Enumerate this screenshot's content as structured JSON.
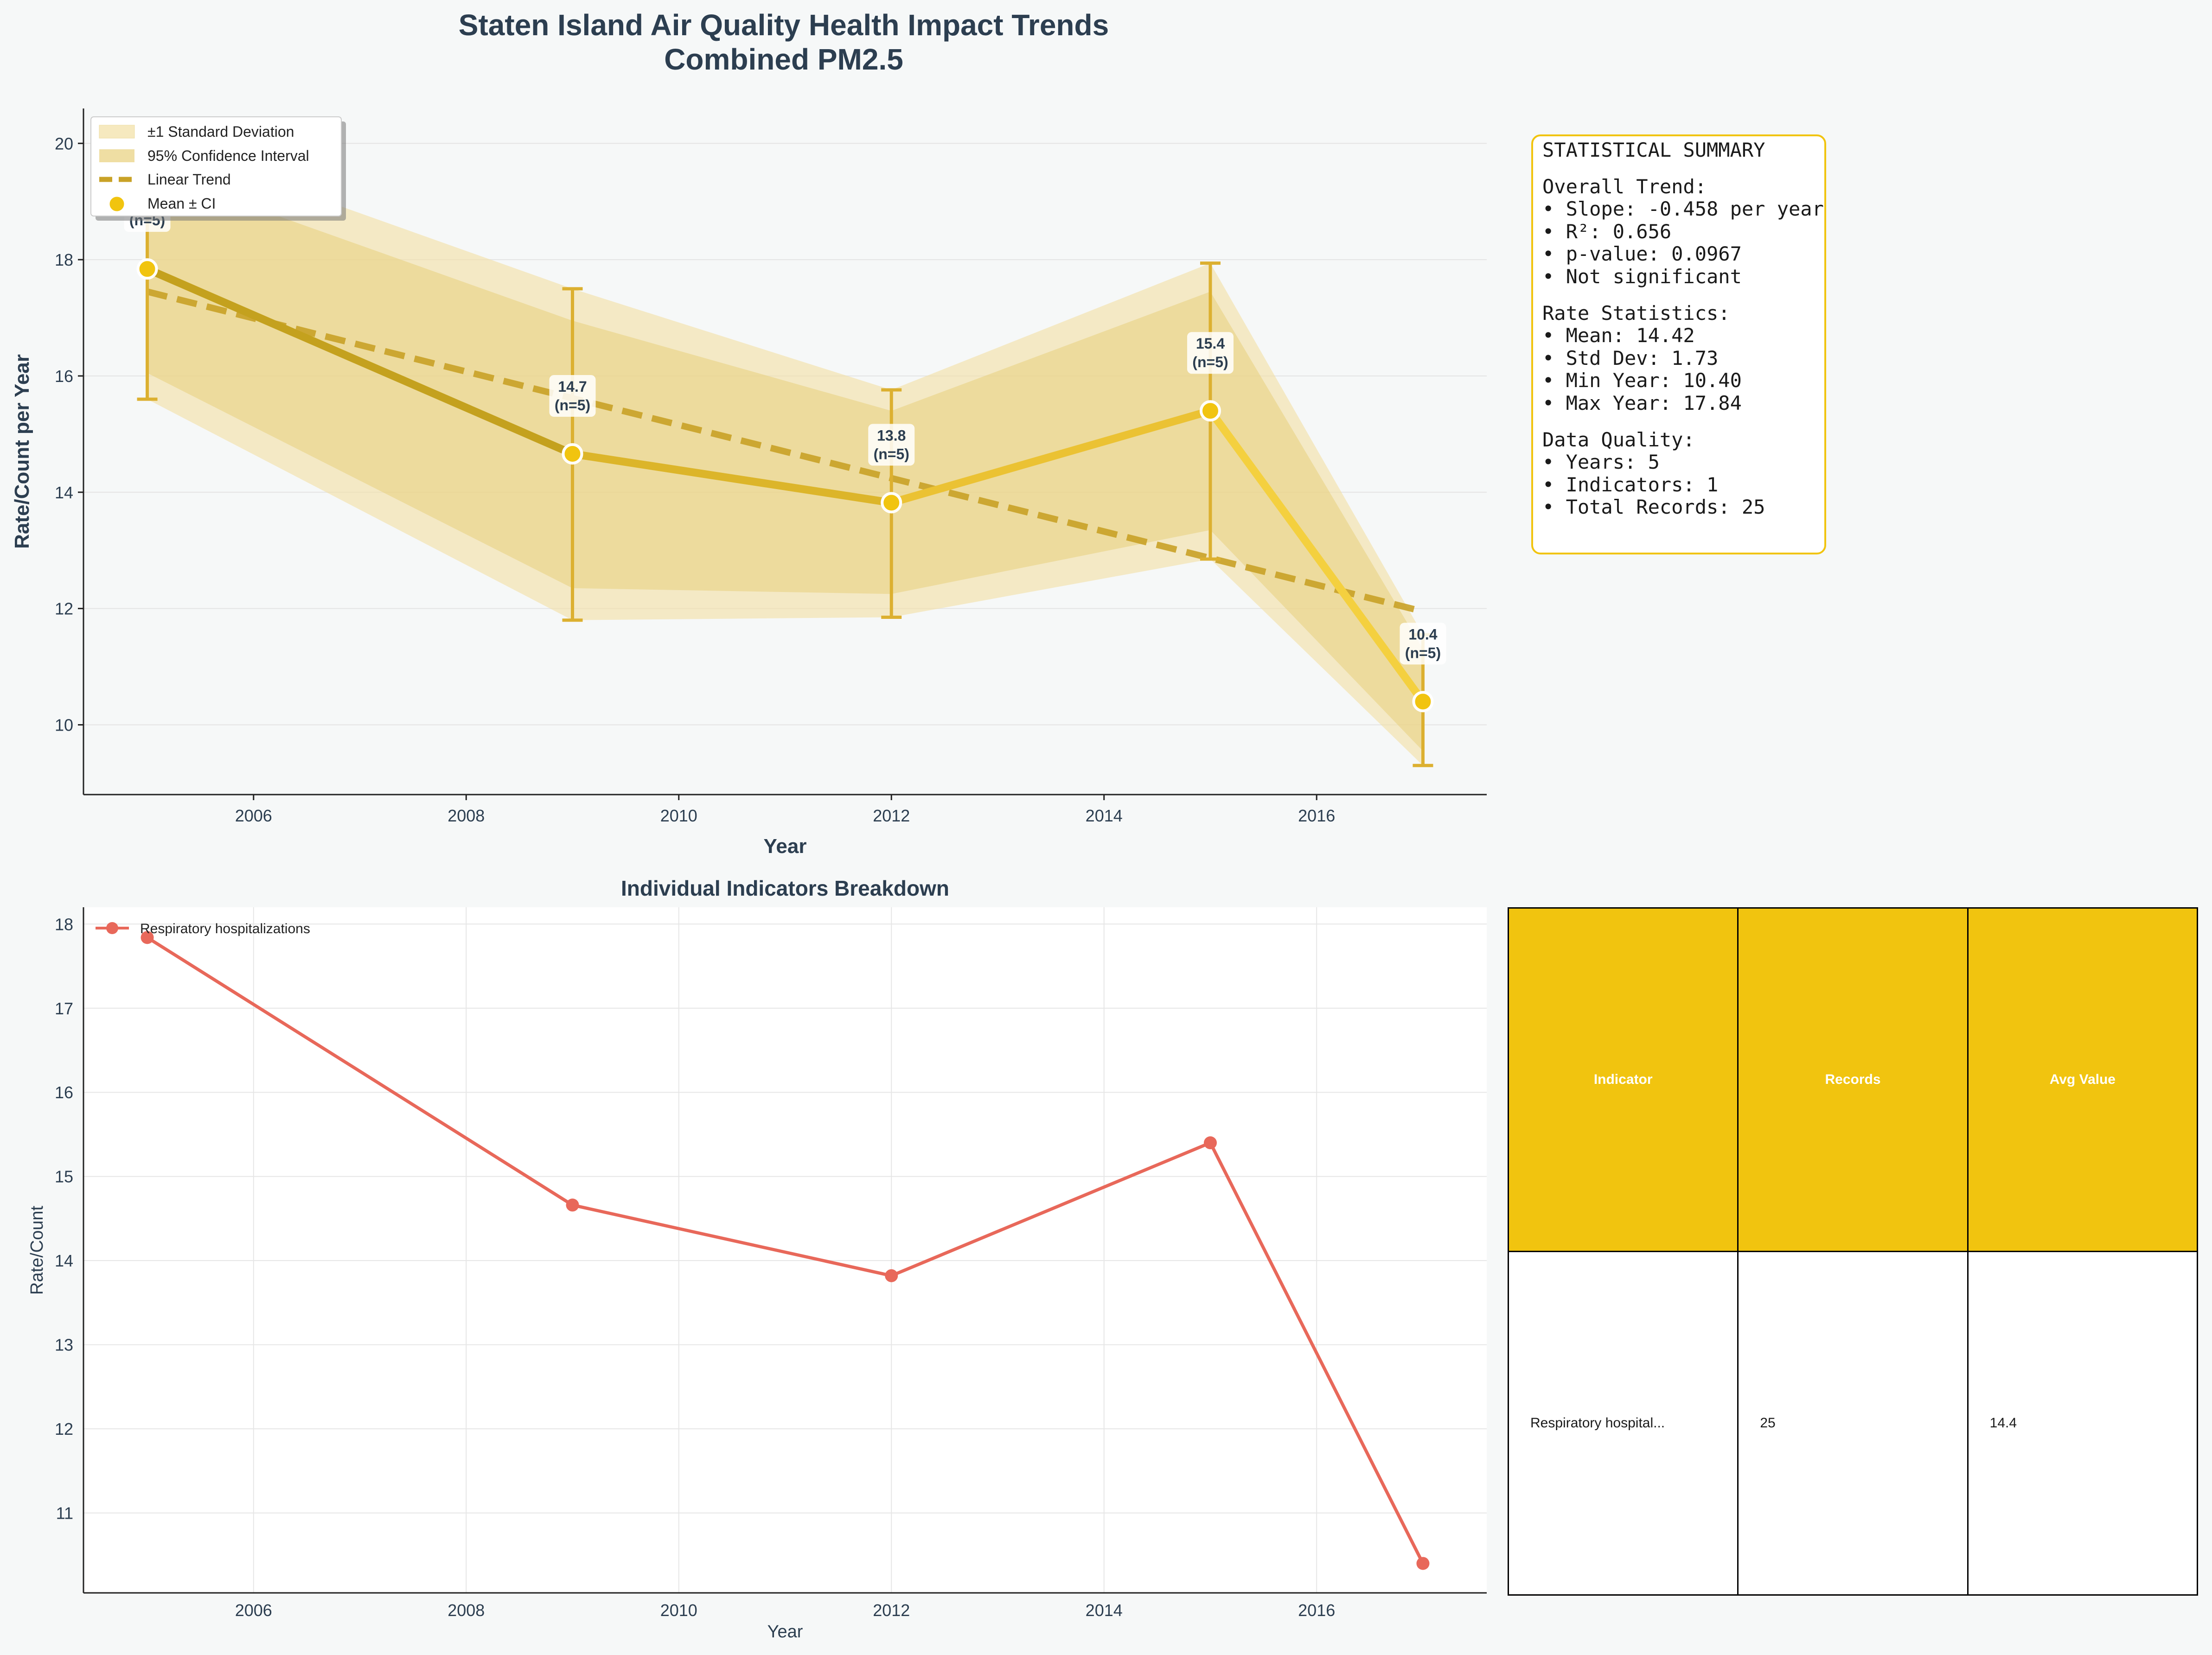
{
  "figure": {
    "title_line1": "Staten Island Air Quality Health Impact Trends",
    "title_line2": "Combined PM2.5"
  },
  "colors": {
    "accent": "#f1c40f",
    "accent_light": "#f4d03f",
    "trend": "#c9a227",
    "band_std": "#f3e0a4",
    "band_ci": "#e8d07c",
    "indicator_line": "#e8685a",
    "text_dark": "#2c3e50"
  },
  "chart_data": [
    {
      "type": "line",
      "title": "Staten Island Air Quality Health Impact Trends\nCombined PM2.5",
      "xlabel": "Year",
      "ylabel": "Rate/Count per Year",
      "xlim": [
        2004.4,
        2017.6
      ],
      "ylim": [
        8.8,
        20.6
      ],
      "x_ticks": [
        2006,
        2008,
        2010,
        2012,
        2014,
        2016
      ],
      "y_ticks": [
        10,
        12,
        14,
        16,
        18,
        20
      ],
      "grid": true,
      "legend_position": "top-left",
      "legend": [
        "±1 Standard Deviation",
        "95% Confidence Interval",
        "Linear Trend",
        "Mean ± CI"
      ],
      "x": [
        2005,
        2009,
        2012,
        2015,
        2017
      ],
      "mean": [
        17.84,
        14.66,
        13.82,
        15.4,
        10.4
      ],
      "ci_lower": [
        15.6,
        11.8,
        11.85,
        12.85,
        9.3
      ],
      "ci_upper": [
        20.1,
        17.5,
        15.76,
        17.94,
        11.55
      ],
      "std_lower": [
        16.05,
        12.35,
        12.25,
        13.35,
        9.55
      ],
      "std_upper": [
        19.55,
        16.95,
        15.4,
        17.45,
        11.3
      ],
      "trend_start": [
        2005,
        17.45
      ],
      "trend_end": [
        2017,
        11.95
      ],
      "point_labels": [
        "17.8\n(n=5)",
        "14.7\n(n=5)",
        "13.8\n(n=5)",
        "15.4\n(n=5)",
        "10.4\n(n=5)"
      ]
    },
    {
      "type": "line",
      "title": "Individual Indicators Breakdown",
      "xlabel": "Year",
      "ylabel": "Rate/Count",
      "xlim": [
        2004.4,
        2017.6
      ],
      "ylim": [
        10.05,
        18.2
      ],
      "x_ticks": [
        2006,
        2008,
        2010,
        2012,
        2014,
        2016
      ],
      "y_ticks": [
        11,
        12,
        13,
        14,
        15,
        16,
        17,
        18
      ],
      "grid": true,
      "legend_position": "top-left",
      "series": [
        {
          "name": "Respiratory hospitalizations",
          "x": [
            2005,
            2009,
            2012,
            2015,
            2017
          ],
          "values": [
            17.84,
            14.66,
            13.82,
            15.4,
            10.4
          ]
        }
      ]
    }
  ],
  "stats_lines": [
    "STATISTICAL SUMMARY",
    "",
    "Overall Trend:",
    "• Slope: -0.458 per year",
    "• R²: 0.656",
    "• p-value: 0.0967",
    "• Not significant",
    "",
    "Rate Statistics:",
    "• Mean: 14.42",
    "• Std Dev: 1.73",
    "• Min Year: 10.40",
    "• Max Year: 17.84",
    "",
    "Data Quality:",
    "• Years: 5",
    "• Indicators: 1",
    "• Total Records: 25"
  ],
  "table": {
    "headers": [
      "Indicator",
      "Records",
      "Avg Value"
    ],
    "rows": [
      [
        "Respiratory hospital...",
        "25",
        "14.4"
      ]
    ]
  }
}
